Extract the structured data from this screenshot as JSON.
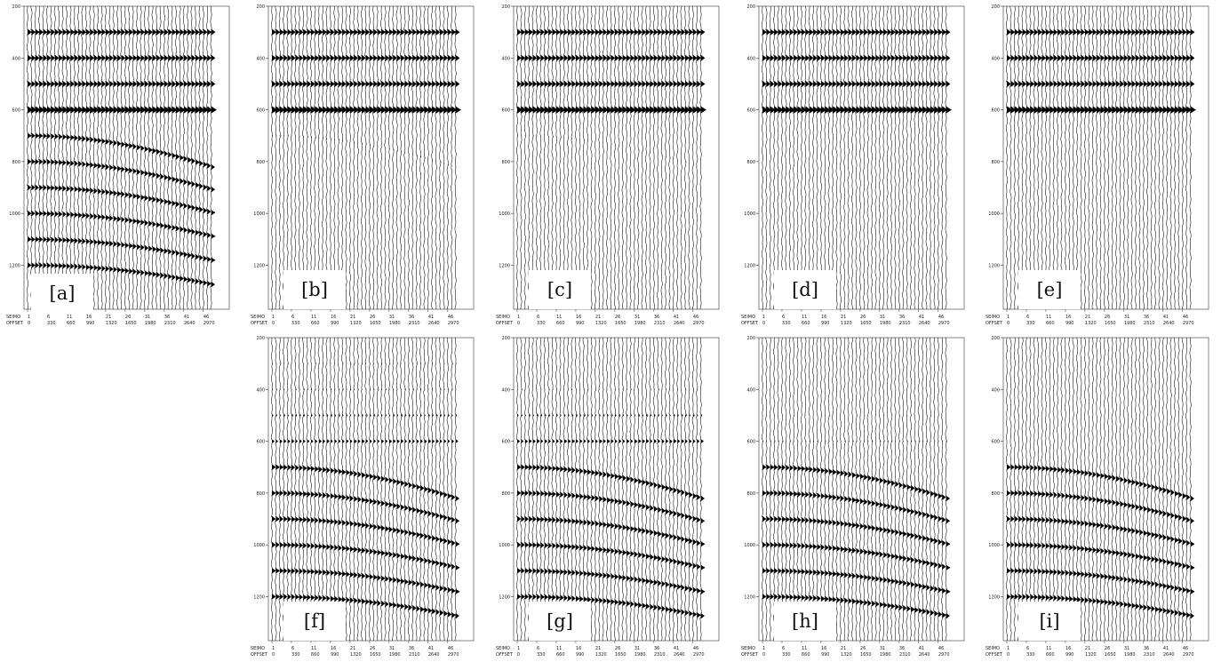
{
  "chart_data": [
    {
      "panel": "[a]",
      "type": "seismic-wiggle",
      "header_labels": [
        "SEIMO",
        "OFFSET"
      ],
      "trace_numbers": [
        "1",
        "6",
        "11",
        "16",
        "21",
        "26",
        "31",
        "36",
        "41",
        "46"
      ],
      "offsets": [
        "0",
        "330",
        "660",
        "990",
        "1320",
        "1650",
        "1980",
        "2310",
        "2640",
        "2970"
      ],
      "time_ticks": [
        "200",
        "400",
        "600",
        "800",
        "1000",
        "1200"
      ],
      "time_range": [
        200,
        1370
      ],
      "events": [
        {
          "type": "flat",
          "t0": 300,
          "amp": 1.0
        },
        {
          "type": "flat",
          "t0": 400,
          "amp": 1.0
        },
        {
          "type": "flat",
          "t0": 500,
          "amp": 1.0
        },
        {
          "type": "flat",
          "t0": 600,
          "amp": 1.3
        },
        {
          "type": "hyperbolic",
          "t0": 700,
          "amp": 0.9
        },
        {
          "type": "hyperbolic",
          "t0": 800,
          "amp": 0.9
        },
        {
          "type": "hyperbolic",
          "t0": 900,
          "amp": 0.9
        },
        {
          "type": "hyperbolic",
          "t0": 1000,
          "amp": 0.9
        },
        {
          "type": "hyperbolic",
          "t0": 1100,
          "amp": 0.9
        },
        {
          "type": "hyperbolic",
          "t0": 1200,
          "amp": 0.9
        }
      ]
    },
    {
      "panel": "[b]",
      "type": "seismic-wiggle",
      "header_labels": [
        "SEIMO",
        "OFFSET"
      ],
      "trace_numbers": [
        "1",
        "6",
        "11",
        "16",
        "21",
        "26",
        "31",
        "36",
        "41",
        "46"
      ],
      "offsets": [
        "0",
        "330",
        "660",
        "990",
        "1320",
        "1650",
        "1980",
        "2310",
        "2640",
        "2970"
      ],
      "time_ticks": [
        "200",
        "400",
        "600",
        "800",
        "1000",
        "1200"
      ],
      "time_range": [
        200,
        1370
      ],
      "events": [
        {
          "type": "flat",
          "t0": 300,
          "amp": 1.0
        },
        {
          "type": "flat",
          "t0": 400,
          "amp": 1.0
        },
        {
          "type": "flat",
          "t0": 500,
          "amp": 1.0
        },
        {
          "type": "flat",
          "t0": 600,
          "amp": 1.3
        },
        {
          "type": "hyperbolic",
          "t0": 700,
          "amp": 0.12
        }
      ]
    },
    {
      "panel": "[c]",
      "type": "seismic-wiggle",
      "header_labels": [
        "SEIMO",
        "OFFSET"
      ],
      "trace_numbers": [
        "1",
        "6",
        "11",
        "16",
        "21",
        "26",
        "31",
        "36",
        "41",
        "46"
      ],
      "offsets": [
        "0",
        "330",
        "660",
        "990",
        "1320",
        "1650",
        "1980",
        "2310",
        "2640",
        "2970"
      ],
      "time_ticks": [
        "200",
        "400",
        "600",
        "800",
        "1000",
        "1200"
      ],
      "time_range": [
        200,
        1370
      ],
      "events": [
        {
          "type": "flat",
          "t0": 300,
          "amp": 1.0
        },
        {
          "type": "flat",
          "t0": 400,
          "amp": 1.0
        },
        {
          "type": "flat",
          "t0": 500,
          "amp": 1.0
        },
        {
          "type": "flat",
          "t0": 600,
          "amp": 1.3
        },
        {
          "type": "hyperbolic",
          "t0": 700,
          "amp": 0.08
        }
      ]
    },
    {
      "panel": "[d]",
      "type": "seismic-wiggle",
      "header_labels": [
        "SEIMO",
        "OFFSET"
      ],
      "trace_numbers": [
        "1",
        "6",
        "11",
        "16",
        "21",
        "26",
        "31",
        "36",
        "41",
        "46"
      ],
      "offsets": [
        "0",
        "330",
        "660",
        "990",
        "1320",
        "1650",
        "1980",
        "2310",
        "2640",
        "2970"
      ],
      "time_ticks": [
        "200",
        "400",
        "600",
        "800",
        "1000",
        "1200"
      ],
      "time_range": [
        200,
        1370
      ],
      "events": [
        {
          "type": "flat",
          "t0": 300,
          "amp": 1.0
        },
        {
          "type": "flat",
          "t0": 400,
          "amp": 1.0
        },
        {
          "type": "flat",
          "t0": 500,
          "amp": 1.0
        },
        {
          "type": "flat",
          "t0": 600,
          "amp": 1.3
        }
      ]
    },
    {
      "panel": "[e]",
      "type": "seismic-wiggle",
      "header_labels": [
        "SEIMO",
        "OFFSET"
      ],
      "trace_numbers": [
        "1",
        "6",
        "11",
        "16",
        "21",
        "26",
        "31",
        "36",
        "41",
        "46"
      ],
      "offsets": [
        "0",
        "330",
        "660",
        "990",
        "1320",
        "1650",
        "1980",
        "2310",
        "2640",
        "2970"
      ],
      "time_ticks": [
        "200",
        "400",
        "600",
        "800",
        "1000",
        "1200"
      ],
      "time_range": [
        200,
        1370
      ],
      "events": [
        {
          "type": "flat",
          "t0": 300,
          "amp": 1.0
        },
        {
          "type": "flat",
          "t0": 400,
          "amp": 1.0
        },
        {
          "type": "flat",
          "t0": 500,
          "amp": 1.0
        },
        {
          "type": "flat",
          "t0": 600,
          "amp": 1.3
        }
      ]
    },
    {
      "panel": "[f]",
      "type": "seismic-wiggle",
      "header_labels": [
        "SEIMO",
        "OFFSET"
      ],
      "trace_numbers": [
        "1",
        "6",
        "11",
        "16",
        "21",
        "26",
        "31",
        "36",
        "41",
        "46"
      ],
      "offsets": [
        "0",
        "330",
        "660",
        "990",
        "1320",
        "1650",
        "1980",
        "2310",
        "2640",
        "2970"
      ],
      "time_ticks": [
        "200",
        "400",
        "600",
        "800",
        "1000",
        "1200"
      ],
      "time_range": [
        200,
        1370
      ],
      "events": [
        {
          "type": "flat",
          "t0": 300,
          "amp": 0.12
        },
        {
          "type": "flat",
          "t0": 400,
          "amp": 0.15
        },
        {
          "type": "flat",
          "t0": 500,
          "amp": 0.3
        },
        {
          "type": "flat",
          "t0": 600,
          "amp": 0.55
        },
        {
          "type": "hyperbolic",
          "t0": 700,
          "amp": 0.9
        },
        {
          "type": "hyperbolic",
          "t0": 800,
          "amp": 0.9
        },
        {
          "type": "hyperbolic",
          "t0": 900,
          "amp": 0.9
        },
        {
          "type": "hyperbolic",
          "t0": 1000,
          "amp": 0.9
        },
        {
          "type": "hyperbolic",
          "t0": 1100,
          "amp": 0.9
        },
        {
          "type": "hyperbolic",
          "t0": 1200,
          "amp": 0.9
        }
      ]
    },
    {
      "panel": "[g]",
      "type": "seismic-wiggle",
      "header_labels": [
        "SEIMO",
        "OFFSET"
      ],
      "trace_numbers": [
        "1",
        "6",
        "11",
        "16",
        "21",
        "26",
        "31",
        "36",
        "41",
        "46"
      ],
      "offsets": [
        "0",
        "330",
        "660",
        "990",
        "1320",
        "1650",
        "1980",
        "2310",
        "2640",
        "2970"
      ],
      "time_ticks": [
        "200",
        "400",
        "600",
        "800",
        "1000",
        "1200"
      ],
      "time_range": [
        200,
        1370
      ],
      "events": [
        {
          "type": "flat",
          "t0": 400,
          "amp": 0.1
        },
        {
          "type": "flat",
          "t0": 500,
          "amp": 0.3
        },
        {
          "type": "flat",
          "t0": 600,
          "amp": 0.6
        },
        {
          "type": "hyperbolic",
          "t0": 700,
          "amp": 0.9
        },
        {
          "type": "hyperbolic",
          "t0": 800,
          "amp": 0.9
        },
        {
          "type": "hyperbolic",
          "t0": 900,
          "amp": 0.9
        },
        {
          "type": "hyperbolic",
          "t0": 1000,
          "amp": 0.9
        },
        {
          "type": "hyperbolic",
          "t0": 1100,
          "amp": 0.9
        },
        {
          "type": "hyperbolic",
          "t0": 1200,
          "amp": 0.9
        }
      ]
    },
    {
      "panel": "[h]",
      "type": "seismic-wiggle",
      "header_labels": [
        "SEIMO",
        "OFFSET"
      ],
      "trace_numbers": [
        "1",
        "6",
        "11",
        "16",
        "21",
        "26",
        "31",
        "36",
        "41",
        "46"
      ],
      "offsets": [
        "0",
        "330",
        "660",
        "990",
        "1320",
        "1650",
        "1980",
        "2310",
        "2640",
        "2970"
      ],
      "time_ticks": [
        "200",
        "400",
        "600",
        "800",
        "1000",
        "1200"
      ],
      "time_range": [
        200,
        1370
      ],
      "events": [
        {
          "type": "flat",
          "t0": 500,
          "amp": 0.06
        },
        {
          "type": "flat",
          "t0": 600,
          "amp": 0.15
        },
        {
          "type": "hyperbolic",
          "t0": 700,
          "amp": 0.9
        },
        {
          "type": "hyperbolic",
          "t0": 800,
          "amp": 0.9
        },
        {
          "type": "hyperbolic",
          "t0": 900,
          "amp": 0.9
        },
        {
          "type": "hyperbolic",
          "t0": 1000,
          "amp": 0.9
        },
        {
          "type": "hyperbolic",
          "t0": 1100,
          "amp": 0.9
        },
        {
          "type": "hyperbolic",
          "t0": 1200,
          "amp": 0.9
        }
      ]
    },
    {
      "panel": "[i]",
      "type": "seismic-wiggle",
      "header_labels": [
        "SEIMO",
        "OFFSET"
      ],
      "trace_numbers": [
        "1",
        "6",
        "11",
        "16",
        "21",
        "26",
        "31",
        "36",
        "41",
        "46"
      ],
      "offsets": [
        "0",
        "330",
        "660",
        "990",
        "1320",
        "1650",
        "1980",
        "2310",
        "2640",
        "2970"
      ],
      "time_ticks": [
        "200",
        "400",
        "600",
        "800",
        "1000",
        "1200"
      ],
      "time_range": [
        200,
        1370
      ],
      "events": [
        {
          "type": "hyperbolic",
          "t0": 700,
          "amp": 0.9
        },
        {
          "type": "hyperbolic",
          "t0": 800,
          "amp": 0.9
        },
        {
          "type": "hyperbolic",
          "t0": 900,
          "amp": 0.9
        },
        {
          "type": "hyperbolic",
          "t0": 1000,
          "amp": 0.9
        },
        {
          "type": "hyperbolic",
          "t0": 1100,
          "amp": 0.9
        },
        {
          "type": "hyperbolic",
          "t0": 1200,
          "amp": 0.9
        }
      ]
    }
  ]
}
